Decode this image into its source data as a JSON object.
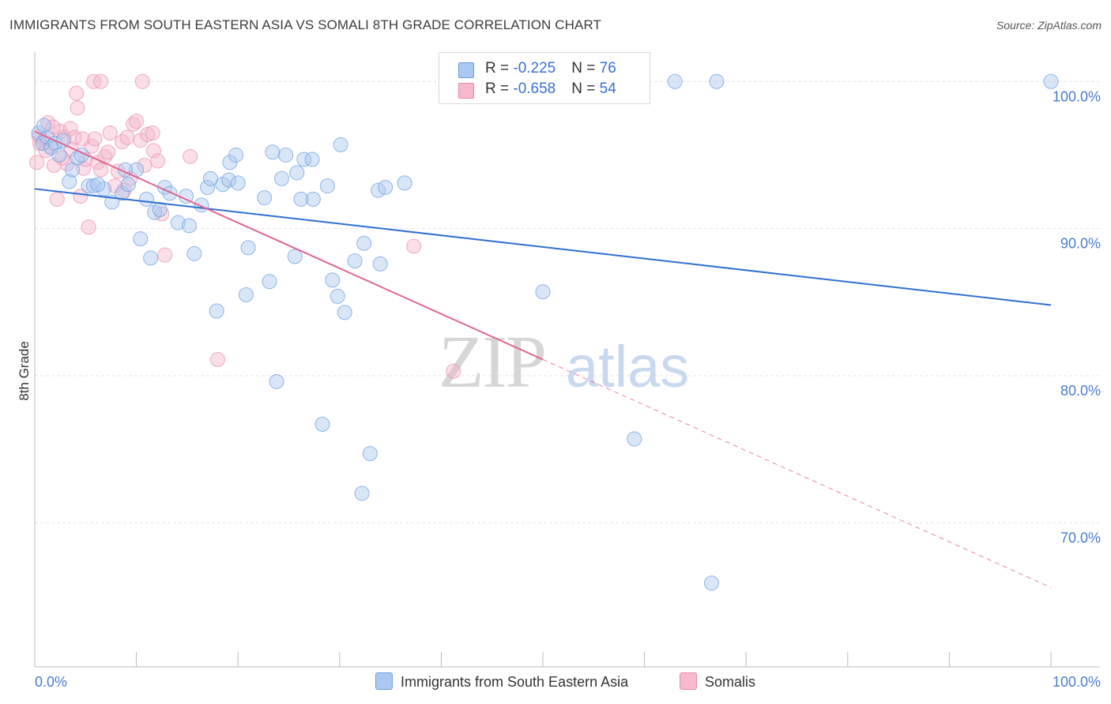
{
  "title": "IMMIGRANTS FROM SOUTH EASTERN ASIA VS SOMALI 8TH GRADE CORRELATION CHART",
  "source": "Source: ZipAtlas.com",
  "watermark": {
    "zip": "ZIP",
    "atlas": "atlas"
  },
  "colors": {
    "blue": "#6d9fe0",
    "blue_fill": "#aac8f0",
    "blue_line": "#2f6fd1",
    "pink": "#e98aab",
    "pink_fill": "#f5b8cc",
    "pink_line": "#e0668f",
    "tick_text": "#4a7bd0",
    "grid": "#e4e4e4"
  },
  "legend": {
    "rows": [
      {
        "r_label": "R = ",
        "r_value": "-0.225",
        "n_label": "N = ",
        "n_value": "76"
      },
      {
        "r_label": "R = ",
        "r_value": "-0.658",
        "n_label": "N = ",
        "n_value": "54"
      }
    ]
  },
  "bottom_legend": {
    "series1": "Immigrants from South Eastern Asia",
    "series2": "Somalis"
  },
  "chart_data": {
    "type": "scatter",
    "title": "IMMIGRANTS FROM SOUTH EASTERN ASIA VS SOMALI 8TH GRADE CORRELATION CHART",
    "xlabel": "",
    "ylabel": "8th Grade",
    "xlim": [
      0,
      100
    ],
    "ylim": [
      60.2,
      102.0
    ],
    "x_tick_labels": [
      "0.0%",
      "100.0%"
    ],
    "y_ticks": [
      70,
      80,
      90,
      100
    ],
    "y_tick_labels": [
      "70.0%",
      "80.0%",
      "90.0%",
      "100.0%"
    ],
    "grid": true,
    "legend_position": "top-center",
    "series": [
      {
        "name": "Immigrants from South Eastern Asia",
        "color": "#6d9fe0",
        "r": -0.225,
        "n": 76,
        "trend": {
          "x": [
            0,
            100
          ],
          "y": [
            92.7,
            84.8
          ],
          "style": "solid"
        },
        "points": [
          [
            0.4,
            96.5
          ],
          [
            0.8,
            95.8
          ],
          [
            1.2,
            96.2
          ],
          [
            1.6,
            95.5
          ],
          [
            2.0,
            95.8
          ],
          [
            2.4,
            95.0
          ],
          [
            3.4,
            93.2
          ],
          [
            3.7,
            94.0
          ],
          [
            4.2,
            94.8
          ],
          [
            4.6,
            95.0
          ],
          [
            5.3,
            92.9
          ],
          [
            5.8,
            92.9
          ],
          [
            6.8,
            92.7
          ],
          [
            7.6,
            91.8
          ],
          [
            8.6,
            92.4
          ],
          [
            9.2,
            93.0
          ],
          [
            10.0,
            94.0
          ],
          [
            10.4,
            89.3
          ],
          [
            11.0,
            92.0
          ],
          [
            11.4,
            88.0
          ],
          [
            11.8,
            91.1
          ],
          [
            12.3,
            91.3
          ],
          [
            12.8,
            92.8
          ],
          [
            13.3,
            92.4
          ],
          [
            14.1,
            90.4
          ],
          [
            14.9,
            92.2
          ],
          [
            15.2,
            90.2
          ],
          [
            15.7,
            88.3
          ],
          [
            16.4,
            91.6
          ],
          [
            17.0,
            92.8
          ],
          [
            17.3,
            93.4
          ],
          [
            17.9,
            84.4
          ],
          [
            18.5,
            93.0
          ],
          [
            19.1,
            93.3
          ],
          [
            19.2,
            94.5
          ],
          [
            19.8,
            95.0
          ],
          [
            20.0,
            93.1
          ],
          [
            21.0,
            88.7
          ],
          [
            20.8,
            85.5
          ],
          [
            22.6,
            92.1
          ],
          [
            23.1,
            86.4
          ],
          [
            23.4,
            95.2
          ],
          [
            23.8,
            79.6
          ],
          [
            24.3,
            93.4
          ],
          [
            24.7,
            95.0
          ],
          [
            25.8,
            93.8
          ],
          [
            26.2,
            92.0
          ],
          [
            26.5,
            94.7
          ],
          [
            27.3,
            94.7
          ],
          [
            27.4,
            92.0
          ],
          [
            25.6,
            88.1
          ],
          [
            28.3,
            76.7
          ],
          [
            28.8,
            92.9
          ],
          [
            29.3,
            86.5
          ],
          [
            29.8,
            85.4
          ],
          [
            30.1,
            95.7
          ],
          [
            30.5,
            84.3
          ],
          [
            31.5,
            87.8
          ],
          [
            32.2,
            72.0
          ],
          [
            32.4,
            89.0
          ],
          [
            33.0,
            74.7
          ],
          [
            33.8,
            92.6
          ],
          [
            34.0,
            87.6
          ],
          [
            34.5,
            92.8
          ],
          [
            36.4,
            93.1
          ],
          [
            43.5,
            100.0
          ],
          [
            50.0,
            85.7
          ],
          [
            59.0,
            75.7
          ],
          [
            63.0,
            100.0
          ],
          [
            67.1,
            100.0
          ],
          [
            66.6,
            65.9
          ],
          [
            100.0,
            100.0
          ],
          [
            0.9,
            97.0
          ],
          [
            2.8,
            96.0
          ],
          [
            6.2,
            93.0
          ],
          [
            8.9,
            94.0
          ]
        ]
      },
      {
        "name": "Somalis",
        "color": "#e98aab",
        "r": -0.658,
        "n": 54,
        "trend": {
          "x": [
            0,
            50
          ],
          "y": [
            96.6,
            81.1
          ],
          "style": "solid",
          "extended": {
            "x": [
              50,
              100
            ],
            "y": [
              81.1,
              65.6
            ],
            "style": "dashed"
          }
        },
        "points": [
          [
            0.2,
            94.5
          ],
          [
            0.5,
            95.8
          ],
          [
            0.9,
            96.0
          ],
          [
            1.3,
            97.2
          ],
          [
            1.6,
            95.6
          ],
          [
            1.9,
            94.3
          ],
          [
            2.2,
            92.0
          ],
          [
            2.5,
            96.6
          ],
          [
            2.9,
            96.2
          ],
          [
            3.2,
            94.4
          ],
          [
            3.5,
            96.8
          ],
          [
            3.9,
            96.2
          ],
          [
            4.1,
            99.2
          ],
          [
            4.2,
            98.2
          ],
          [
            4.5,
            92.2
          ],
          [
            4.7,
            96.1
          ],
          [
            4.8,
            94.1
          ],
          [
            5.0,
            94.7
          ],
          [
            5.3,
            90.1
          ],
          [
            5.6,
            95.6
          ],
          [
            5.9,
            96.1
          ],
          [
            6.2,
            94.5
          ],
          [
            6.5,
            94.0
          ],
          [
            5.8,
            100.0
          ],
          [
            6.5,
            100.0
          ],
          [
            7.4,
            96.5
          ],
          [
            7.9,
            92.9
          ],
          [
            8.2,
            93.9
          ],
          [
            8.6,
            95.9
          ],
          [
            8.8,
            92.6
          ],
          [
            9.1,
            96.2
          ],
          [
            9.7,
            97.1
          ],
          [
            10.0,
            97.3
          ],
          [
            10.4,
            96.0
          ],
          [
            10.8,
            94.3
          ],
          [
            11.1,
            96.4
          ],
          [
            11.7,
            95.3
          ],
          [
            12.1,
            94.6
          ],
          [
            12.5,
            91.0
          ],
          [
            12.8,
            88.2
          ],
          [
            10.6,
            100.0
          ],
          [
            15.3,
            94.9
          ],
          [
            18.0,
            81.1
          ],
          [
            37.3,
            88.8
          ],
          [
            41.2,
            80.3
          ],
          [
            0.4,
            96.3
          ],
          [
            1.1,
            95.3
          ],
          [
            2.7,
            94.8
          ],
          [
            3.6,
            95.4
          ],
          [
            6.9,
            94.9
          ],
          [
            9.4,
            93.4
          ],
          [
            11.6,
            96.5
          ],
          [
            7.2,
            95.2
          ],
          [
            1.8,
            96.9
          ]
        ]
      }
    ]
  }
}
